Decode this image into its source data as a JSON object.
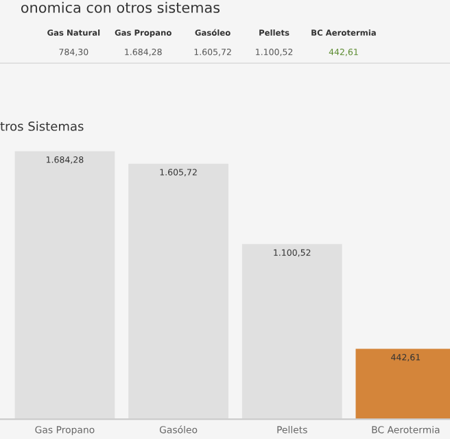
{
  "chart_data": [
    {
      "type": "other",
      "title": "onomica con otros sistemas",
      "categories": [
        "Gas Natural",
        "Gas Propano",
        "Gasóleo",
        "Pellets",
        "BC Aerotermia"
      ],
      "values": [
        784.3,
        1684.28,
        1605.72,
        1100.52,
        442.61
      ],
      "value_labels": [
        "784,30",
        "1.684,28",
        "1.605,72",
        "1.100,52",
        "442,61"
      ],
      "colors": [
        "#555555",
        "#555555",
        "#555555",
        "#555555",
        "#5a8a2e"
      ]
    },
    {
      "type": "bar",
      "title": "tros Sistemas",
      "categories": [
        "Gas Propano",
        "Gasóleo",
        "Pellets",
        "BC Aerotermia"
      ],
      "values": [
        1684.28,
        1605.72,
        1100.52,
        442.61
      ],
      "value_labels": [
        "1.684,28",
        "1.605,72",
        "1.100,52",
        "442,61"
      ],
      "colors": [
        "#e0e0e0",
        "#e0e0e0",
        "#e0e0e0",
        "#d4853a"
      ]
    }
  ]
}
